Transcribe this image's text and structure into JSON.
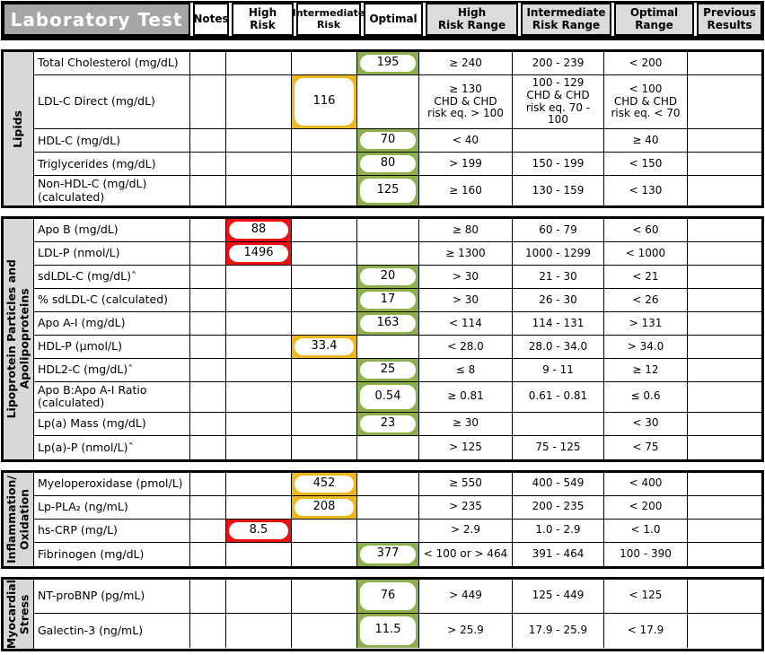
{
  "colors": {
    "high_risk": "#EE1111",
    "intermediate": "#EDB71E",
    "optimal": "#8DB04A",
    "header_gray": "#A5A5A5",
    "range_header_bg": "#DBDBDB",
    "section_label_bg": "#D8D8D8"
  },
  "header": {
    "lab_test": "Laboratory Test",
    "notes": "Notes",
    "high_risk": "High Risk",
    "intermediate_risk": "Intermediate\nRisk",
    "optimal": "Optimal",
    "high_risk_range": "High\nRisk Range",
    "intermediate_risk_range": "Intermediate\nRisk Range",
    "optimal_range": "Optimal Range",
    "previous_results": "Previous\nResults"
  },
  "sections": [
    {
      "label": "Lipids",
      "rows": [
        {
          "test": "Total Cholesterol (mg/dL)",
          "notes": "",
          "value": "195",
          "value_col": "opt",
          "high_range": "≥ 240",
          "inter_range": "200 - 239",
          "optimal_range": "< 200",
          "previous": ""
        },
        {
          "test": "LDL-C Direct (mg/dL)",
          "notes": "",
          "value": "116",
          "value_col": "inter",
          "high_range": "≥ 130\nCHD & CHD\nrisk eq. > 100",
          "inter_range": "100 - 129\nCHD & CHD\nrisk eq. 70 - 100",
          "optimal_range": "< 100\nCHD & CHD\nrisk eq. < 70",
          "previous": ""
        },
        {
          "test": "HDL-C (mg/dL)",
          "notes": "",
          "value": "70",
          "value_col": "opt",
          "high_range": "< 40",
          "inter_range": "",
          "optimal_range": "≥ 40",
          "previous": ""
        },
        {
          "test": "Triglycerides (mg/dL)",
          "notes": "",
          "value": "80",
          "value_col": "opt",
          "high_range": "> 199",
          "inter_range": "150 - 199",
          "optimal_range": "< 150",
          "previous": ""
        },
        {
          "test": "Non-HDL-C (mg/dL)\n(calculated)",
          "notes": "",
          "value": "125",
          "value_col": "opt",
          "high_range": "≥ 160",
          "inter_range": "130 - 159",
          "optimal_range": "< 130",
          "previous": ""
        }
      ]
    },
    {
      "label": "Lipoprotein Particles and\nApolipoproteins",
      "rows": [
        {
          "test": "Apo B (mg/dL)",
          "notes": "",
          "value": "88",
          "value_col": "high",
          "high_range": "≥ 80",
          "inter_range": "60 - 79",
          "optimal_range": "< 60",
          "previous": ""
        },
        {
          "test": "LDL-P (nmol/L)",
          "notes": "",
          "value": "1496",
          "value_col": "high",
          "high_range": "≥ 1300",
          "inter_range": "1000 - 1299",
          "optimal_range": "< 1000",
          "previous": ""
        },
        {
          "test": "sdLDL-C (mg/dL)ˆ",
          "notes": "",
          "value": "20",
          "value_col": "opt",
          "high_range": "> 30",
          "inter_range": "21 - 30",
          "optimal_range": "< 21",
          "previous": ""
        },
        {
          "test": "% sdLDL-C (calculated)",
          "notes": "",
          "value": "17",
          "value_col": "opt",
          "high_range": "> 30",
          "inter_range": "26 - 30",
          "optimal_range": "< 26",
          "previous": ""
        },
        {
          "test": "Apo A-I (mg/dL)",
          "notes": "",
          "value": "163",
          "value_col": "opt",
          "high_range": "< 114",
          "inter_range": "114 - 131",
          "optimal_range": "> 131",
          "previous": ""
        },
        {
          "test": "HDL-P (µmol/L)",
          "notes": "",
          "value": "33.4",
          "value_col": "inter",
          "high_range": "< 28.0",
          "inter_range": "28.0 - 34.0",
          "optimal_range": "> 34.0",
          "previous": ""
        },
        {
          "test": "HDL2-C (mg/dL)ˆ",
          "notes": "",
          "value": "25",
          "value_col": "opt",
          "high_range": "≤ 8",
          "inter_range": "9 - 11",
          "optimal_range": "≥ 12",
          "previous": ""
        },
        {
          "test": "Apo B:Apo A-I Ratio\n(calculated)",
          "notes": "",
          "value": "0.54",
          "value_col": "opt",
          "high_range": "≥ 0.81",
          "inter_range": "0.61 - 0.81",
          "optimal_range": "≤ 0.6",
          "previous": ""
        },
        {
          "test": "Lp(a) Mass (mg/dL)",
          "notes": "",
          "value": "23",
          "value_col": "opt",
          "high_range": "≥ 30",
          "inter_range": "",
          "optimal_range": "< 30",
          "previous": ""
        },
        {
          "test": "Lp(a)-P (nmol/L)ˆ",
          "notes": "",
          "value": "",
          "value_col": "",
          "high_range": "> 125",
          "inter_range": "75 - 125",
          "optimal_range": "< 75",
          "previous": ""
        }
      ]
    },
    {
      "label": "Inflammation/\nOxidation",
      "rows": [
        {
          "test": "Myeloperoxidase (pmol/L)",
          "notes": "",
          "value": "452",
          "value_col": "inter",
          "high_range": "≥ 550",
          "inter_range": "400 - 549",
          "optimal_range": "< 400",
          "previous": ""
        },
        {
          "test": "Lp-PLA₂ (ng/mL)",
          "notes": "",
          "value": "208",
          "value_col": "inter",
          "high_range": "> 235",
          "inter_range": "200 - 235",
          "optimal_range": "< 200",
          "previous": ""
        },
        {
          "test": "hs-CRP (mg/L)",
          "notes": "",
          "value": "8.5",
          "value_col": "high",
          "high_range": "> 2.9",
          "inter_range": "1.0 - 2.9",
          "optimal_range": "< 1.0",
          "previous": ""
        },
        {
          "test": "Fibrinogen (mg/dL)",
          "notes": "",
          "value": "377",
          "value_col": "opt",
          "high_range": "< 100 or > 464",
          "inter_range": "391 - 464",
          "optimal_range": "100 - 390",
          "previous": ""
        }
      ]
    },
    {
      "label": "Myocardial\nStress",
      "tall": true,
      "rows": [
        {
          "test": "NT-proBNP (pg/mL)",
          "notes": "",
          "value": "76",
          "value_col": "opt",
          "high_range": "> 449",
          "inter_range": "125 - 449",
          "optimal_range": "< 125",
          "previous": ""
        },
        {
          "test": "Galectin-3 (ng/mL)",
          "notes": "",
          "value": "11.5",
          "value_col": "opt",
          "high_range": "> 25.9",
          "inter_range": "17.9 - 25.9",
          "optimal_range": "< 17.9",
          "previous": ""
        }
      ]
    }
  ]
}
